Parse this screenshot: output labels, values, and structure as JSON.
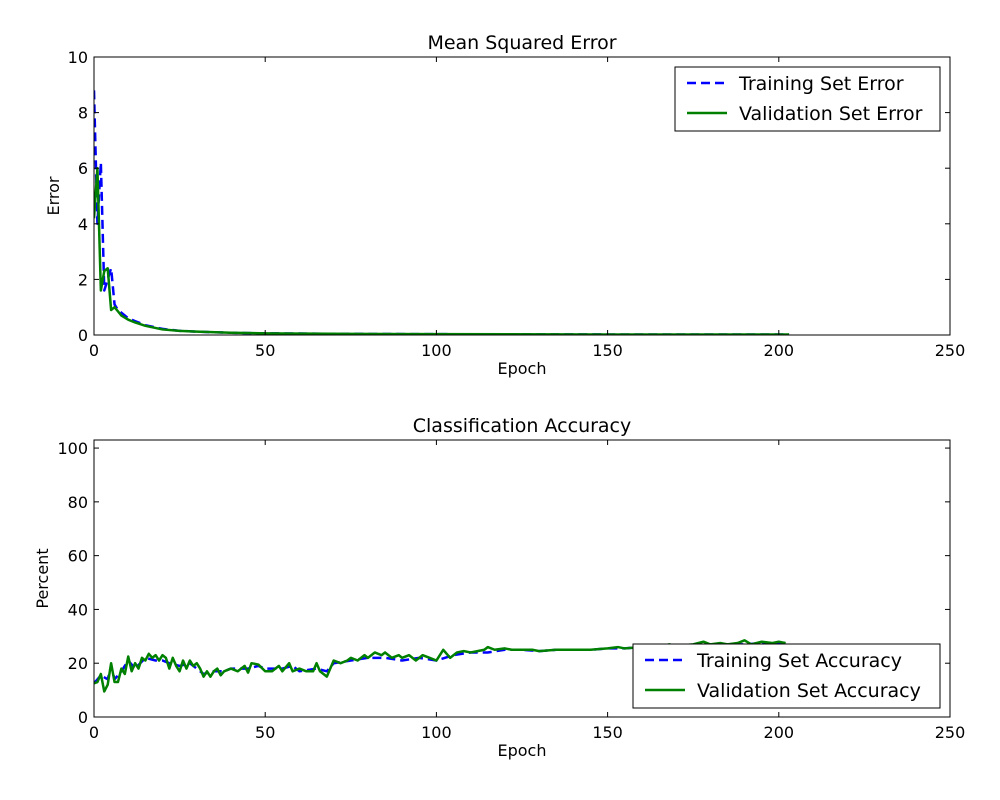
{
  "chart_data": [
    {
      "type": "line",
      "title": "Mean Squared Error",
      "xlabel": "Epoch",
      "ylabel": "Error",
      "xlim": [
        0,
        250
      ],
      "ylim": [
        0,
        10
      ],
      "xticks": [
        0,
        50,
        100,
        150,
        200,
        250
      ],
      "yticks": [
        0,
        2,
        4,
        6,
        8,
        10
      ],
      "grid": false,
      "legend_position": "top-right",
      "series": [
        {
          "name": "Training Set Error",
          "color": "#0000ff",
          "style": "dashed",
          "points": [
            [
              0,
              8.8
            ],
            [
              1,
              4.0
            ],
            [
              2,
              6.2
            ],
            [
              3,
              1.6
            ],
            [
              4,
              2.0
            ],
            [
              5,
              2.4
            ],
            [
              6,
              1.1
            ],
            [
              7,
              0.9
            ],
            [
              8,
              0.8
            ],
            [
              10,
              0.6
            ],
            [
              12,
              0.5
            ],
            [
              15,
              0.35
            ],
            [
              20,
              0.22
            ],
            [
              25,
              0.15
            ],
            [
              30,
              0.12
            ],
            [
              40,
              0.08
            ],
            [
              50,
              0.06
            ],
            [
              75,
              0.04
            ],
            [
              100,
              0.03
            ],
            [
              150,
              0.02
            ],
            [
              203,
              0.02
            ]
          ]
        },
        {
          "name": "Validation Set Error",
          "color": "#008000",
          "style": "solid",
          "points": [
            [
              0,
              4.2
            ],
            [
              1,
              6.0
            ],
            [
              2,
              1.6
            ],
            [
              3,
              2.3
            ],
            [
              4,
              2.4
            ],
            [
              5,
              0.9
            ],
            [
              6,
              1.0
            ],
            [
              7,
              0.85
            ],
            [
              8,
              0.7
            ],
            [
              10,
              0.55
            ],
            [
              12,
              0.45
            ],
            [
              15,
              0.33
            ],
            [
              20,
              0.2
            ],
            [
              25,
              0.15
            ],
            [
              30,
              0.12
            ],
            [
              40,
              0.08
            ],
            [
              50,
              0.06
            ],
            [
              75,
              0.04
            ],
            [
              100,
              0.03
            ],
            [
              150,
              0.02
            ],
            [
              203,
              0.02
            ]
          ]
        }
      ]
    },
    {
      "type": "line",
      "title": "Classification Accuracy",
      "xlabel": "Epoch",
      "ylabel": "Percent",
      "xlim": [
        0,
        250
      ],
      "ylim": [
        0,
        103
      ],
      "xticks": [
        0,
        50,
        100,
        150,
        200,
        250
      ],
      "yticks": [
        0,
        20,
        40,
        60,
        80,
        100
      ],
      "grid": false,
      "legend_position": "lower-right",
      "series": [
        {
          "name": "Training Set Accuracy",
          "color": "#0000ff",
          "style": "dashed",
          "points": [
            [
              0,
              12.5
            ],
            [
              2,
              15.5
            ],
            [
              4,
              14
            ],
            [
              5,
              19
            ],
            [
              6,
              14
            ],
            [
              8,
              17
            ],
            [
              10,
              21
            ],
            [
              12,
              18
            ],
            [
              15,
              22
            ],
            [
              18,
              21
            ],
            [
              20,
              21
            ],
            [
              22,
              20
            ],
            [
              25,
              19
            ],
            [
              28,
              20
            ],
            [
              30,
              18
            ],
            [
              32,
              16
            ],
            [
              35,
              17
            ],
            [
              38,
              17
            ],
            [
              40,
              18
            ],
            [
              42,
              18
            ],
            [
              45,
              18
            ],
            [
              48,
              19
            ],
            [
              50,
              18
            ],
            [
              55,
              18
            ],
            [
              58,
              19
            ],
            [
              60,
              17
            ],
            [
              65,
              18
            ],
            [
              68,
              17
            ],
            [
              70,
              20
            ],
            [
              75,
              21
            ],
            [
              80,
              22
            ],
            [
              85,
              22
            ],
            [
              90,
              21
            ],
            [
              95,
              22
            ],
            [
              100,
              21
            ],
            [
              105,
              23
            ],
            [
              110,
              24
            ],
            [
              115,
              24
            ],
            [
              120,
              25
            ],
            [
              125,
              25
            ],
            [
              130,
              24.5
            ],
            [
              135,
              25
            ],
            [
              140,
              25
            ],
            [
              145,
              25
            ],
            [
              150,
              25.5
            ],
            [
              155,
              25.5
            ],
            [
              160,
              26
            ],
            [
              165,
              26
            ],
            [
              170,
              26.5
            ],
            [
              175,
              26.5
            ],
            [
              180,
              27
            ],
            [
              185,
              27
            ],
            [
              190,
              27
            ],
            [
              195,
              27.5
            ],
            [
              200,
              27.5
            ],
            [
              202,
              27.5
            ]
          ]
        },
        {
          "name": "Validation Set Accuracy",
          "color": "#008000",
          "style": "solid",
          "points": [
            [
              0,
              12.5
            ],
            [
              1,
              13
            ],
            [
              2,
              16
            ],
            [
              3,
              9.5
            ],
            [
              4,
              12
            ],
            [
              5,
              20
            ],
            [
              6,
              13
            ],
            [
              7,
              13
            ],
            [
              8,
              18
            ],
            [
              9,
              16
            ],
            [
              10,
              22.5
            ],
            [
              11,
              17
            ],
            [
              12,
              20
            ],
            [
              13,
              18
            ],
            [
              14,
              22
            ],
            [
              15,
              21
            ],
            [
              16,
              23.5
            ],
            [
              17,
              22
            ],
            [
              18,
              23
            ],
            [
              19,
              21
            ],
            [
              20,
              23
            ],
            [
              21,
              22
            ],
            [
              22,
              18
            ],
            [
              23,
              22
            ],
            [
              24,
              19
            ],
            [
              25,
              17
            ],
            [
              26,
              21
            ],
            [
              27,
              18
            ],
            [
              28,
              21
            ],
            [
              29,
              19
            ],
            [
              30,
              20
            ],
            [
              31,
              18
            ],
            [
              32,
              15
            ],
            [
              33,
              17
            ],
            [
              34,
              15
            ],
            [
              35,
              17
            ],
            [
              36,
              18
            ],
            [
              37,
              15.5
            ],
            [
              38,
              17
            ],
            [
              40,
              18
            ],
            [
              42,
              17
            ],
            [
              44,
              19
            ],
            [
              45,
              16.5
            ],
            [
              46,
              20
            ],
            [
              48,
              19.5
            ],
            [
              50,
              17
            ],
            [
              52,
              17
            ],
            [
              54,
              19
            ],
            [
              55,
              17
            ],
            [
              57,
              20
            ],
            [
              58,
              17
            ],
            [
              60,
              18
            ],
            [
              62,
              17
            ],
            [
              64,
              17
            ],
            [
              65,
              20
            ],
            [
              66,
              17
            ],
            [
              68,
              15
            ],
            [
              70,
              21
            ],
            [
              72,
              20
            ],
            [
              74,
              21
            ],
            [
              75,
              22
            ],
            [
              77,
              21
            ],
            [
              79,
              23
            ],
            [
              80,
              22
            ],
            [
              82,
              24
            ],
            [
              84,
              23
            ],
            [
              85,
              24
            ],
            [
              87,
              22
            ],
            [
              89,
              23
            ],
            [
              90,
              22
            ],
            [
              92,
              23
            ],
            [
              94,
              21
            ],
            [
              96,
              23
            ],
            [
              98,
              22
            ],
            [
              100,
              21
            ],
            [
              102,
              25
            ],
            [
              104,
              22
            ],
            [
              106,
              24
            ],
            [
              108,
              24.5
            ],
            [
              110,
              24
            ],
            [
              112,
              24.5
            ],
            [
              114,
              25
            ],
            [
              115,
              26
            ],
            [
              117,
              25
            ],
            [
              120,
              25.5
            ],
            [
              122,
              25
            ],
            [
              125,
              25
            ],
            [
              128,
              25
            ],
            [
              130,
              24.5
            ],
            [
              135,
              25
            ],
            [
              140,
              25
            ],
            [
              145,
              25
            ],
            [
              150,
              25.5
            ],
            [
              153,
              26
            ],
            [
              155,
              25.5
            ],
            [
              160,
              26
            ],
            [
              165,
              26
            ],
            [
              168,
              27
            ],
            [
              170,
              26.5
            ],
            [
              175,
              27
            ],
            [
              178,
              28
            ],
            [
              180,
              27
            ],
            [
              183,
              27.5
            ],
            [
              185,
              27
            ],
            [
              188,
              27.5
            ],
            [
              190,
              28.5
            ],
            [
              192,
              27
            ],
            [
              195,
              28
            ],
            [
              198,
              27.5
            ],
            [
              200,
              28
            ],
            [
              202,
              27.5
            ]
          ]
        }
      ]
    }
  ]
}
